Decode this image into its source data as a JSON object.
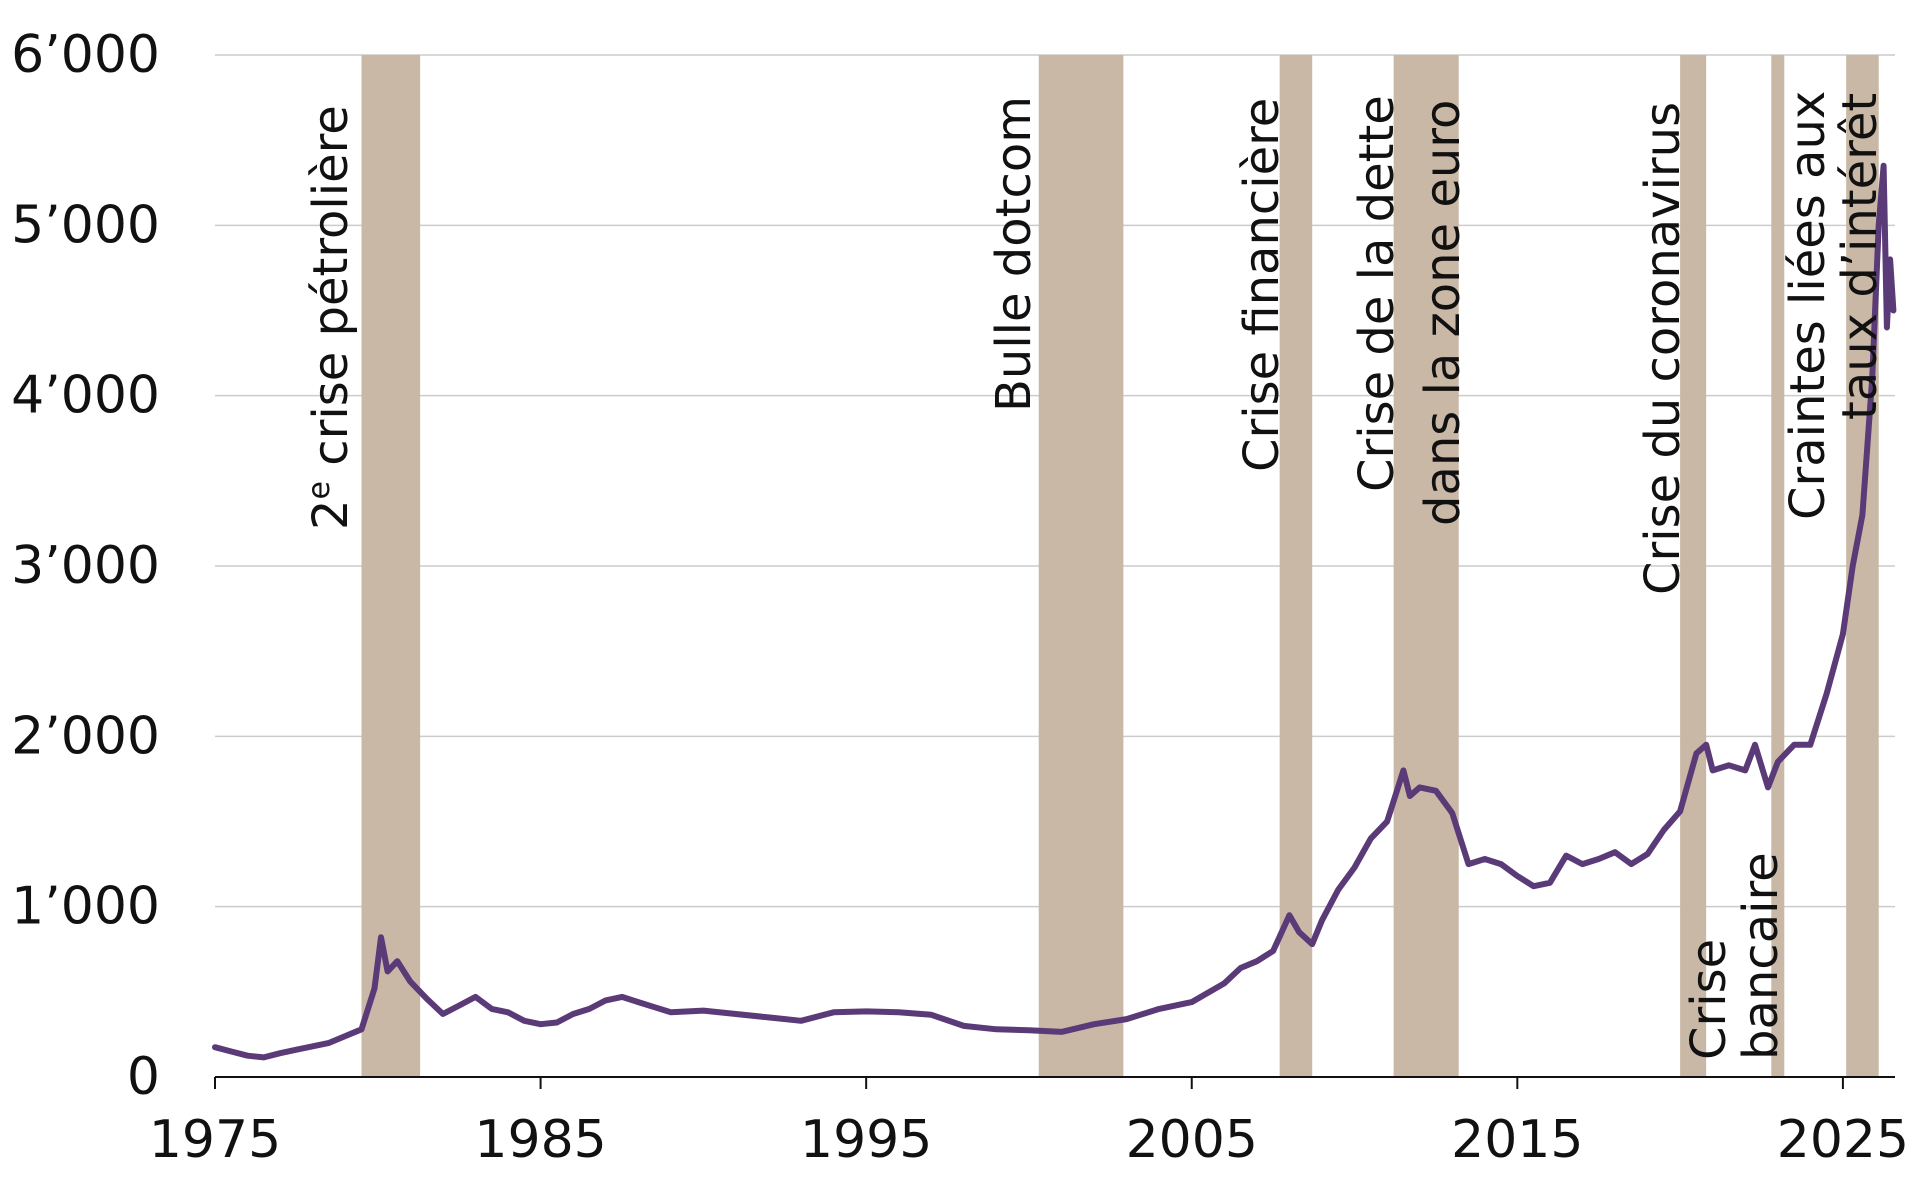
{
  "chart_data": {
    "type": "line",
    "title": "",
    "xlabel": "",
    "ylabel": "",
    "xlim": [
      1975,
      2026.6
    ],
    "ylim": [
      0,
      6000
    ],
    "grid": true,
    "x_ticks": [
      {
        "value": 1975,
        "label": "1975"
      },
      {
        "value": 1985,
        "label": "1985"
      },
      {
        "value": 1995,
        "label": "1995"
      },
      {
        "value": 2005,
        "label": "2005"
      },
      {
        "value": 2015,
        "label": "2015"
      },
      {
        "value": 2025,
        "label": "2025"
      }
    ],
    "y_ticks": [
      {
        "value": 0,
        "label": "0"
      },
      {
        "value": 1000,
        "label": "1’000"
      },
      {
        "value": 2000,
        "label": "2’000"
      },
      {
        "value": 3000,
        "label": "3’000"
      },
      {
        "value": 4000,
        "label": "4’000"
      },
      {
        "value": 5000,
        "label": "5’000"
      },
      {
        "value": 6000,
        "label": "6’000"
      }
    ],
    "line_color": "#5b3a78",
    "band_color": "#c9b8a6",
    "series": [
      {
        "x": [
          1975.0,
          1975.5,
          1976.0,
          1976.5,
          1977.0,
          1977.5,
          1978.0,
          1978.5,
          1979.0,
          1979.5,
          1979.9,
          1980.1,
          1980.3,
          1980.6,
          1981.0,
          1981.5,
          1982.0,
          1982.5,
          1983.0,
          1983.5,
          1984.0,
          1984.5,
          1985.0,
          1985.5,
          1986.0,
          1986.5,
          1987.0,
          1987.5,
          1988.0,
          1988.5,
          1989.0,
          1990.0,
          1991.0,
          1992.0,
          1993.0,
          1994.0,
          1995.0,
          1996.0,
          1997.0,
          1998.0,
          1999.0,
          2000.0,
          2001.0,
          2002.0,
          2003.0,
          2004.0,
          2005.0,
          2006.0,
          2006.5,
          2007.0,
          2007.5,
          2008.0,
          2008.3,
          2008.7,
          2009.0,
          2009.5,
          2010.0,
          2010.5,
          2011.0,
          2011.5,
          2011.7,
          2012.0,
          2012.5,
          2013.0,
          2013.5,
          2014.0,
          2014.5,
          2015.0,
          2015.5,
          2016.0,
          2016.5,
          2017.0,
          2017.5,
          2018.0,
          2018.5,
          2019.0,
          2019.5,
          2020.0,
          2020.5,
          2020.8,
          2021.0,
          2021.5,
          2022.0,
          2022.3,
          2022.7,
          2023.0,
          2023.5,
          2024.0,
          2024.5,
          2025.0,
          2025.3,
          2025.6,
          2025.9,
          2026.1,
          2026.25,
          2026.35,
          2026.45,
          2026.55
        ],
        "y": [
          175,
          150,
          125,
          115,
          140,
          160,
          180,
          200,
          240,
          280,
          520,
          820,
          620,
          680,
          560,
          460,
          370,
          420,
          470,
          400,
          380,
          330,
          310,
          320,
          370,
          400,
          450,
          470,
          440,
          410,
          380,
          390,
          370,
          350,
          330,
          380,
          385,
          380,
          365,
          300,
          280,
          275,
          265,
          310,
          340,
          400,
          440,
          550,
          640,
          680,
          740,
          950,
          850,
          780,
          920,
          1100,
          1230,
          1400,
          1500,
          1800,
          1650,
          1700,
          1680,
          1550,
          1250,
          1280,
          1250,
          1180,
          1120,
          1140,
          1300,
          1250,
          1280,
          1320,
          1250,
          1310,
          1450,
          1560,
          1900,
          1950,
          1800,
          1830,
          1800,
          1950,
          1700,
          1850,
          1950,
          1950,
          2250,
          2600,
          3000,
          3300,
          4100,
          5000,
          5350,
          4400,
          4800,
          4500
        ]
      }
    ],
    "bands": [
      {
        "label": "2e crise pétrolière",
        "from": 1979.5,
        "to": 1981.3
      },
      {
        "label": "Bulle dotcom",
        "from": 2000.3,
        "to": 2002.9
      },
      {
        "label": "Crise financière",
        "from": 2007.7,
        "to": 2008.7
      },
      {
        "label": "Crise de la dette dans la zone euro",
        "from": 2011.2,
        "to": 2013.2
      },
      {
        "label": "Crise du coronavirus",
        "from": 2020.0,
        "to": 2020.8
      },
      {
        "label": "Crise bancaire",
        "from": 2022.8,
        "to": 2023.2
      },
      {
        "label": "Craintes liées aux taux d’intérêt",
        "from": 2025.1,
        "to": 2026.1
      }
    ]
  },
  "annotations": {
    "oil_crisis": {
      "lead": "2",
      "sup": "e",
      "rest": " crise pétrolière"
    },
    "dotcom": "Bulle dotcom",
    "financial": "Crise financière",
    "eurozone_line1": "Crise de la dette",
    "eurozone_line2": "dans la zone euro",
    "corona": "Crise du coronavirus",
    "bank_line1": "Crise",
    "bank_line2": "bancaire",
    "rates_line1": "Craintes liées aux",
    "rates_line2": "taux d’intérêt"
  }
}
